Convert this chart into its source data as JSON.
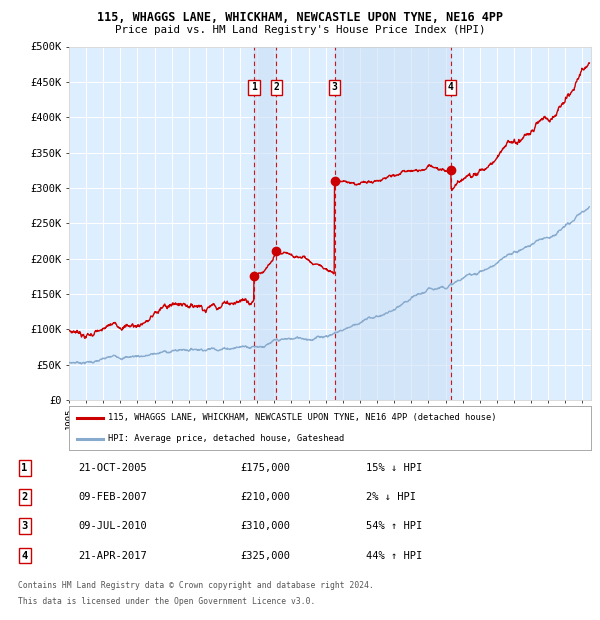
{
  "title_line1": "115, WHAGGS LANE, WHICKHAM, NEWCASTLE UPON TYNE, NE16 4PP",
  "title_line2": "Price paid vs. HM Land Registry's House Price Index (HPI)",
  "ylim": [
    0,
    500000
  ],
  "yticks": [
    0,
    50000,
    100000,
    150000,
    200000,
    250000,
    300000,
    350000,
    400000,
    450000,
    500000
  ],
  "ytick_labels": [
    "£0",
    "£50K",
    "£100K",
    "£150K",
    "£200K",
    "£250K",
    "£300K",
    "£350K",
    "£400K",
    "£450K",
    "£500K"
  ],
  "xlim_start": 1995.3,
  "xlim_end": 2025.5,
  "xticks": [
    1995,
    1996,
    1997,
    1998,
    1999,
    2000,
    2001,
    2002,
    2003,
    2004,
    2005,
    2006,
    2007,
    2008,
    2009,
    2010,
    2011,
    2012,
    2013,
    2014,
    2015,
    2016,
    2017,
    2018,
    2019,
    2020,
    2021,
    2022,
    2023,
    2024,
    2025
  ],
  "background_color": "#ffffff",
  "plot_bg_color": "#ddeeff",
  "grid_color": "#ffffff",
  "red_line_color": "#cc0000",
  "blue_line_color": "#88aacc",
  "shade_color": "#cce0f5",
  "transactions": [
    {
      "num": 1,
      "date": 2005.81,
      "price": 175000
    },
    {
      "num": 2,
      "date": 2007.11,
      "price": 210000
    },
    {
      "num": 3,
      "date": 2010.52,
      "price": 310000
    },
    {
      "num": 4,
      "date": 2017.31,
      "price": 325000
    }
  ],
  "legend_red_label": "115, WHAGGS LANE, WHICKHAM, NEWCASTLE UPON TYNE, NE16 4PP (detached house)",
  "legend_blue_label": "HPI: Average price, detached house, Gateshead",
  "table_rows": [
    [
      "1",
      "21-OCT-2005",
      "£175,000",
      "15% ↓ HPI"
    ],
    [
      "2",
      "09-FEB-2007",
      "£210,000",
      "2% ↓ HPI"
    ],
    [
      "3",
      "09-JUL-2010",
      "£310,000",
      "54% ↑ HPI"
    ],
    [
      "4",
      "21-APR-2017",
      "£325,000",
      "44% ↑ HPI"
    ]
  ],
  "footer_line1": "Contains HM Land Registry data © Crown copyright and database right 2024.",
  "footer_line2": "This data is licensed under the Open Government Licence v3.0."
}
